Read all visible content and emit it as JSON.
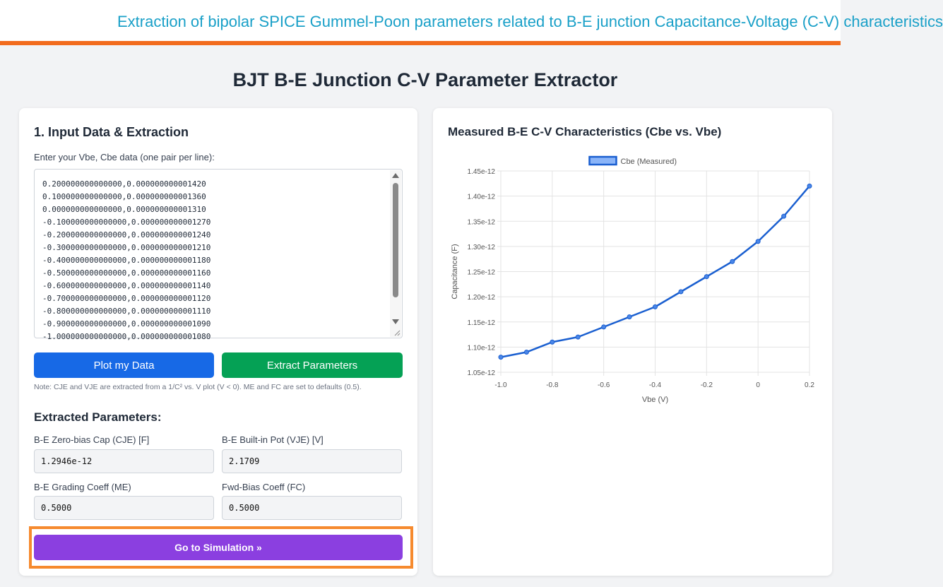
{
  "header": {
    "banner": "Extraction of bipolar SPICE Gummel-Poon parameters related to B-E junction Capacitance-Voltage (C-V) characteristics"
  },
  "page_title": "BJT B-E Junction C-V Parameter Extractor",
  "input_panel": {
    "title": "1. Input Data & Extraction",
    "label": "Enter your Vbe, Cbe data (one pair per line):",
    "data_text": "0.200000000000000,0.000000000001420\n0.100000000000000,0.000000000001360\n0.000000000000000,0.000000000001310\n-0.100000000000000,0.000000000001270\n-0.200000000000000,0.000000000001240\n-0.300000000000000,0.000000000001210\n-0.400000000000000,0.000000000001180\n-0.500000000000000,0.000000000001160\n-0.600000000000000,0.000000000001140\n-0.700000000000000,0.000000000001120\n-0.800000000000000,0.000000000001110\n-0.900000000000000,0.000000000001090\n-1.000000000000000,0.000000000001080",
    "plot_button": "Plot my Data",
    "extract_button": "Extract Parameters",
    "note": "Note: CJE and VJE are extracted from a 1/C² vs. V plot (V < 0). ME and FC are set to defaults (0.5)."
  },
  "params": {
    "title": "Extracted Parameters:",
    "cje_label": "B-E Zero-bias Cap (CJE) [F]",
    "cje_value": "1.2946e-12",
    "vje_label": "B-E Built-in Pot (VJE) [V]",
    "vje_value": "2.1709",
    "me_label": "B-E Grading Coeff (ME)",
    "me_value": "0.5000",
    "fc_label": "Fwd-Bias Coeff (FC)",
    "fc_value": "0.5000"
  },
  "simulation_button": "Go to Simulation »",
  "chart_panel": {
    "title": "Measured B-E C-V Characteristics (Cbe vs. Vbe)"
  },
  "colors": {
    "accent_orange": "#f26b1d",
    "banner_text": "#1aa0c8",
    "plot_button": "#1769e6",
    "extract_button": "#05a155",
    "simulation_button": "#8b3fe0",
    "series_line": "#1a5fd0"
  },
  "chart_data": {
    "type": "line",
    "xlabel": "Vbe (V)",
    "ylabel": "Capacitance (F)",
    "legend_position": "top-center",
    "grid": true,
    "xlim": [
      -1.0,
      0.2
    ],
    "ylim": [
      1.05e-12,
      1.45e-12
    ],
    "x_ticks": [
      "-1.0",
      "-0.8",
      "-0.6",
      "-0.4",
      "-0.2",
      "0",
      "0.2"
    ],
    "y_ticks": [
      "1.05e-12",
      "1.10e-12",
      "1.15e-12",
      "1.20e-12",
      "1.25e-12",
      "1.30e-12",
      "1.35e-12",
      "1.40e-12",
      "1.45e-12"
    ],
    "series": [
      {
        "name": "Cbe (Measured)",
        "x": [
          -1.0,
          -0.9,
          -0.8,
          -0.7,
          -0.6,
          -0.5,
          -0.4,
          -0.3,
          -0.2,
          -0.1,
          0.0,
          0.1,
          0.2
        ],
        "y": [
          1.08e-12,
          1.09e-12,
          1.11e-12,
          1.12e-12,
          1.14e-12,
          1.16e-12,
          1.18e-12,
          1.21e-12,
          1.24e-12,
          1.27e-12,
          1.31e-12,
          1.36e-12,
          1.42e-12
        ]
      }
    ]
  }
}
